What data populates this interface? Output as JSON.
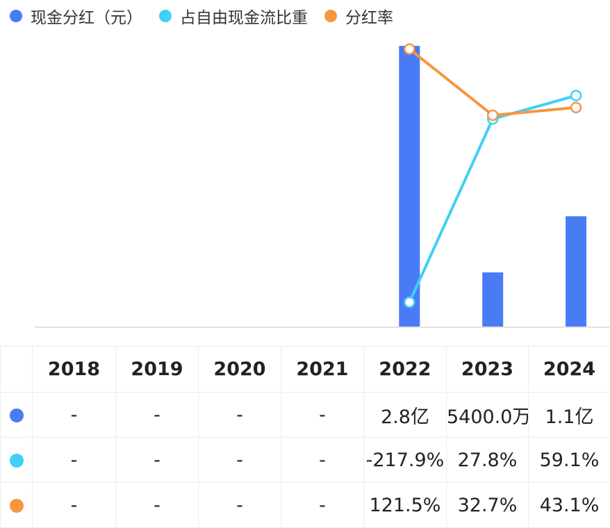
{
  "legend": [
    {
      "label": "现金分红（元）",
      "color": "#4a7bf7"
    },
    {
      "label": "占自由现金流比重",
      "color": "#3fd0f5"
    },
    {
      "label": "分红率",
      "color": "#f6963d"
    }
  ],
  "chart_data": {
    "type": "bar+line",
    "categories": [
      "2018",
      "2019",
      "2020",
      "2021",
      "2022",
      "2023",
      "2024"
    ],
    "series": [
      {
        "name": "现金分红（元）",
        "type": "bar",
        "color": "#4a7bf7",
        "values": [
          null,
          null,
          null,
          null,
          280000000,
          54000000,
          110000000
        ]
      },
      {
        "name": "占自由现金流比重",
        "type": "line",
        "color": "#3fd0f5",
        "values": [
          null,
          null,
          null,
          null,
          -217.9,
          27.8,
          59.1
        ]
      },
      {
        "name": "分红率",
        "type": "line",
        "color": "#f6963d",
        "values": [
          null,
          null,
          null,
          null,
          121.5,
          32.7,
          43.1
        ]
      }
    ]
  },
  "table": {
    "headers": [
      "",
      "2018",
      "2019",
      "2020",
      "2021",
      "2022",
      "2023",
      "2024"
    ],
    "rows": [
      {
        "color": "#4a7bf7",
        "cells": [
          "-",
          "-",
          "-",
          "-",
          "2.8亿",
          "5400.0万",
          "1.1亿"
        ]
      },
      {
        "color": "#3fd0f5",
        "cells": [
          "-",
          "-",
          "-",
          "-",
          "-217.9%",
          "27.8%",
          "59.1%"
        ]
      },
      {
        "color": "#f6963d",
        "cells": [
          "-",
          "-",
          "-",
          "-",
          "121.5%",
          "32.7%",
          "43.1%"
        ]
      }
    ]
  }
}
